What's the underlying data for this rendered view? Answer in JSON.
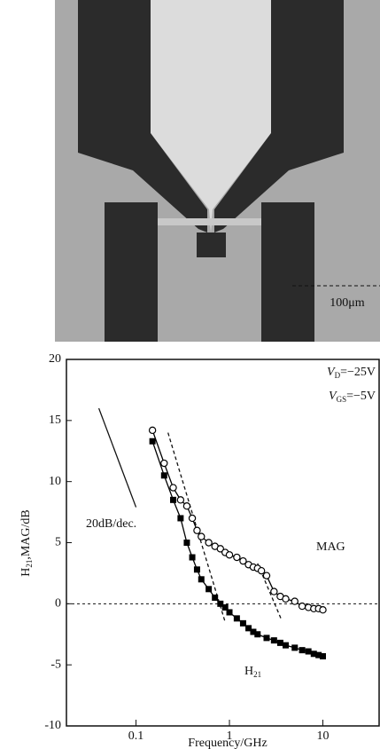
{
  "image": {
    "scale_label": "100μm"
  },
  "chart_data": {
    "type": "line",
    "xlabel": "Frequency/GHz",
    "ylabel": {
      "main": "H",
      "sub": "21",
      "rest": ",MAG/dB"
    },
    "xscale": "log",
    "xlim": [
      0.018,
      40
    ],
    "xticks": [
      0.1,
      1,
      10
    ],
    "ylim": [
      -10,
      20
    ],
    "yticks": [
      -10,
      -5,
      0,
      5,
      10,
      15,
      20
    ],
    "hline": 0,
    "annotations": [
      {
        "main": "V",
        "sub": "D",
        "rest": "=−25V"
      },
      {
        "main": "V",
        "sub": "GS",
        "rest": "=−5V"
      },
      {
        "main": "20dB/dec."
      }
    ],
    "fit_lines": [
      {
        "x": [
          0.04,
          0.1
        ],
        "y": [
          16,
          7.9
        ],
        "dashed": false
      },
      {
        "x": [
          0.22,
          0.9
        ],
        "y": [
          14,
          -1.5
        ],
        "dashed": true
      },
      {
        "x": [
          2.0,
          3.6
        ],
        "y": [
          3.3,
          -1.3
        ],
        "dashed": true
      }
    ],
    "series": [
      {
        "name": "MAG",
        "marker": "circle",
        "color": "#000000",
        "x": [
          0.15,
          0.2,
          0.25,
          0.3,
          0.35,
          0.4,
          0.45,
          0.5,
          0.6,
          0.7,
          0.8,
          0.9,
          1.0,
          1.2,
          1.4,
          1.6,
          1.8,
          2.0,
          2.2,
          2.5,
          3,
          3.5,
          4,
          5,
          6,
          7,
          8,
          9,
          10
        ],
        "values": [
          14.2,
          11.5,
          9.5,
          8.5,
          8.0,
          7.0,
          6.0,
          5.5,
          5.0,
          4.7,
          4.5,
          4.2,
          4.0,
          3.8,
          3.5,
          3.2,
          3.0,
          2.9,
          2.7,
          2.3,
          1.0,
          0.6,
          0.4,
          0.2,
          -0.2,
          -0.3,
          -0.4,
          -0.4,
          -0.5
        ]
      },
      {
        "name": "H",
        "name_sub": "21",
        "marker": "square",
        "color": "#000000",
        "x": [
          0.15,
          0.2,
          0.25,
          0.3,
          0.35,
          0.4,
          0.45,
          0.5,
          0.6,
          0.7,
          0.8,
          0.9,
          1.0,
          1.2,
          1.4,
          1.6,
          1.8,
          2.0,
          2.5,
          3,
          3.5,
          4,
          5,
          6,
          7,
          8,
          9,
          10
        ],
        "values": [
          13.3,
          10.5,
          8.5,
          7.0,
          5.0,
          3.8,
          2.8,
          2.0,
          1.2,
          0.5,
          0.0,
          -0.3,
          -0.7,
          -1.2,
          -1.6,
          -2.0,
          -2.3,
          -2.5,
          -2.8,
          -3.0,
          -3.2,
          -3.4,
          -3.6,
          -3.8,
          -3.9,
          -4.1,
          -4.2,
          -4.3
        ]
      }
    ]
  }
}
